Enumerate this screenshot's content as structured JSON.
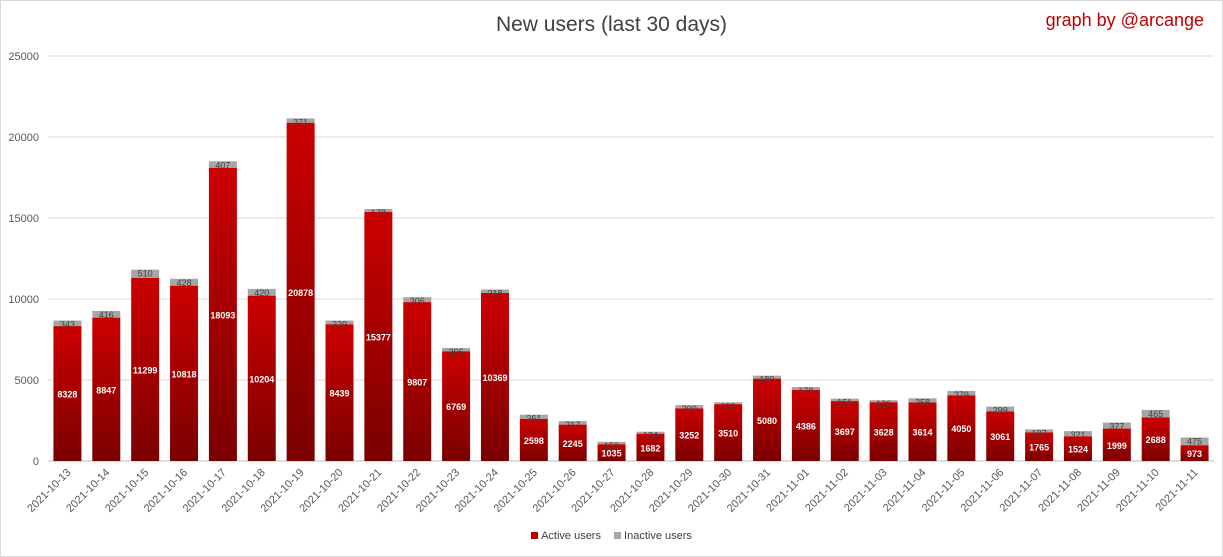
{
  "header": {
    "title": "New users (last 30 days)",
    "credit": "graph by @arcange"
  },
  "colors": {
    "active_top": "#cc0000",
    "active_bottom": "#7a0000",
    "inactive": "#a6a6a6",
    "credit": "#c00000"
  },
  "chart_data": {
    "type": "bar",
    "stacked": true,
    "title": "New users (last 30 days)",
    "categories": [
      "2021-10-13",
      "2021-10-14",
      "2021-10-15",
      "2021-10-16",
      "2021-10-17",
      "2021-10-18",
      "2021-10-19",
      "2021-10-20",
      "2021-10-21",
      "2021-10-22",
      "2021-10-23",
      "2021-10-24",
      "2021-10-25",
      "2021-10-26",
      "2021-10-27",
      "2021-10-28",
      "2021-10-29",
      "2021-10-30",
      "2021-10-31",
      "2021-11-01",
      "2021-11-02",
      "2021-11-03",
      "2021-11-04",
      "2021-11-05",
      "2021-11-06",
      "2021-11-07",
      "2021-11-08",
      "2021-11-09",
      "2021-11-10",
      "2021-11-11"
    ],
    "series": [
      {
        "name": "Active users",
        "values": [
          8328,
          8847,
          11299,
          10818,
          18093,
          10204,
          20878,
          8439,
          15377,
          9807,
          6769,
          10369,
          2598,
          2245,
          1035,
          1682,
          3252,
          3510,
          5080,
          4386,
          3697,
          3628,
          3614,
          4050,
          3061,
          1765,
          1524,
          1999,
          2688,
          973
        ]
      },
      {
        "name": "Inactive users",
        "values": [
          343,
          416,
          510,
          428,
          407,
          420,
          271,
          229,
          178,
          306,
          206,
          218,
          261,
          217,
          150,
          124,
          200,
          116,
          189,
          178,
          151,
          126,
          258,
          279,
          299,
          187,
          321,
          377,
          465,
          475
        ]
      }
    ],
    "ylim": [
      0,
      25000
    ],
    "yticks": [
      "0",
      "5000",
      "10000",
      "15000",
      "20000",
      "25000"
    ],
    "grid": true,
    "legend": "bottom"
  }
}
